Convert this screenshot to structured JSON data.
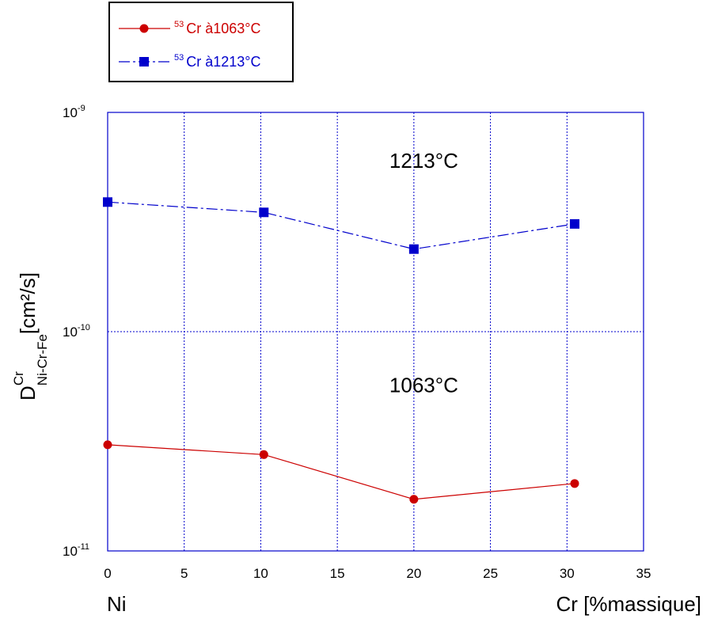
{
  "chart_data": {
    "type": "line",
    "xlabel_left": "Ni",
    "xlabel_right": "Cr [%massique]",
    "ylabel": {
      "main": "D",
      "superscript": "Cr",
      "subscript": "Ni-Cr-Fe",
      "unit": "[cm²/s]"
    },
    "xlim": [
      0,
      35
    ],
    "ylim": [
      1e-11,
      1e-09
    ],
    "yscale": "log",
    "xticks": [
      "0",
      "5",
      "10",
      "15",
      "20",
      "25",
      "30",
      "35"
    ],
    "yticks": [
      {
        "base": "10",
        "exp": "-11"
      },
      {
        "base": "10",
        "exp": "-10"
      },
      {
        "base": "10",
        "exp": "-9"
      }
    ],
    "grid": true,
    "legend_position": "top-left",
    "series": [
      {
        "name_sup": "53",
        "name": "Cr à1063°C",
        "color": "#cc0000",
        "marker": "circle",
        "line": "solid",
        "x": [
          0,
          10.2,
          20,
          30.5
        ],
        "y": [
          3.05e-11,
          2.75e-11,
          1.72e-11,
          2.03e-11
        ]
      },
      {
        "name_sup": "53",
        "name": "Cr à1213°C",
        "color": "#0000cc",
        "marker": "square",
        "line": "dashed",
        "x": [
          0,
          10.2,
          20,
          30.5
        ],
        "y": [
          3.9e-10,
          3.5e-10,
          2.38e-10,
          3.1e-10
        ]
      }
    ],
    "annotations": [
      {
        "text": "1213°C",
        "x": 18.4,
        "y": 5.6e-10
      },
      {
        "text": "1063°C",
        "x": 18.4,
        "y": 5.3e-11
      }
    ]
  }
}
